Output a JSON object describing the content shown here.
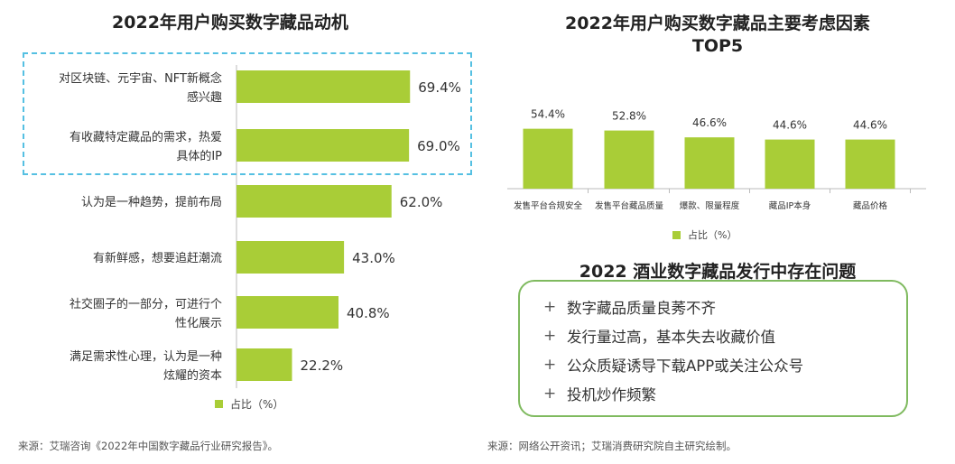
{
  "left": {
    "title": "2022年用户购买数字藏品动机",
    "legend": "占比（%）",
    "source": "来源：艾瑞咨询《2022年中国数字藏品行业研究报告》。"
  },
  "right": {
    "title_line1": "2022年用户购买数字藏品主要考虑因素",
    "title_line2": "TOP5",
    "legend": "占比（%）",
    "issues_title": "2022 酒业数字藏品发行中存在问题",
    "issues": [
      "数字藏品质量良莠不齐",
      "发行量过高，基本失去收藏价值",
      "公众质疑诱导下载APP或关注公众号",
      "投机炒作频繁"
    ],
    "issue_marker": "+",
    "source": "来源：网络公开资讯；艾瑞消费研究院自主研究绘制。"
  },
  "chart_data": [
    {
      "type": "bar",
      "orientation": "horizontal",
      "title": "2022年用户购买数字藏品动机",
      "categories": [
        [
          "对区块链、元宇宙、NFT新概念",
          "感兴趣"
        ],
        [
          "有收藏特定藏品的需求，热爱",
          "具体的IP"
        ],
        [
          "认为是一种趋势，提前布局"
        ],
        [
          "有新鲜感，想要追赶潮流"
        ],
        [
          "社交圈子的一部分，可进行个",
          "性化展示"
        ],
        [
          "满足需求性心理，认为是一种",
          "炫耀的资本"
        ]
      ],
      "values": [
        69.4,
        69.0,
        62.0,
        43.0,
        40.8,
        22.2
      ],
      "labels": [
        "69.4%",
        "69.0%",
        "62.0%",
        "43.0%",
        "40.8%",
        "22.2%"
      ],
      "highlighted": [
        0,
        1
      ],
      "color": "#a9cd37",
      "legend": "占比（%）",
      "xlim": [
        0,
        100
      ]
    },
    {
      "type": "bar",
      "orientation": "vertical",
      "title": "2022年用户购买数字藏品主要考虑因素TOP5",
      "categories": [
        "发售平台合规安全",
        "发售平台藏品质量",
        "爆款、限量程度",
        "藏品IP本身",
        "藏品价格"
      ],
      "values": [
        54.4,
        52.8,
        46.6,
        44.6,
        44.6
      ],
      "labels": [
        "54.4%",
        "52.8%",
        "46.6%",
        "44.6%",
        "44.6%"
      ],
      "color": "#a9cd37",
      "legend": "占比（%）",
      "ylim": [
        0,
        60
      ]
    }
  ]
}
